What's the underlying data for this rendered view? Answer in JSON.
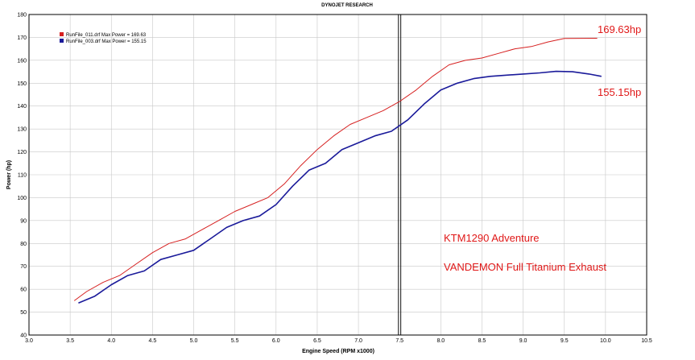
{
  "header": {
    "title": "DYNOJET RESEARCH"
  },
  "colors": {
    "series1": "#d62020",
    "series2": "#1a1a9a",
    "annotation": "#e01818",
    "grid": "#c8c8c8"
  },
  "chart_data": {
    "type": "line",
    "title": "DYNOJET RESEARCH",
    "xlabel": "Engine Speed (RPM x1000)",
    "ylabel": "Power (hp)",
    "xlim": [
      3.0,
      10.5
    ],
    "ylim": [
      40,
      180
    ],
    "x_ticks": [
      "3.0",
      "3.5",
      "4.0",
      "4.5",
      "5.0",
      "5.5",
      "6.0",
      "6.5",
      "7.0",
      "7.5",
      "8.0",
      "8.5",
      "9.0",
      "9.5",
      "10.0",
      "10.5"
    ],
    "y_ticks": [
      "40",
      "50",
      "60",
      "70",
      "80",
      "90",
      "100",
      "110",
      "120",
      "130",
      "140",
      "150",
      "160",
      "170",
      "180"
    ],
    "grid": true,
    "legend_position": "top-left",
    "legend": [
      "RunFile_011.drf Max Power = 169.63",
      "RunFile_003.drf Max Power = 155.15"
    ],
    "series": [
      {
        "name": "RunFile_011.drf Max Power = 169.63",
        "color": "#d62020",
        "x": [
          3.55,
          3.7,
          3.9,
          4.1,
          4.3,
          4.5,
          4.7,
          4.9,
          5.1,
          5.3,
          5.5,
          5.7,
          5.9,
          6.1,
          6.3,
          6.5,
          6.7,
          6.9,
          7.1,
          7.3,
          7.5,
          7.7,
          7.9,
          8.1,
          8.3,
          8.5,
          8.7,
          8.9,
          9.1,
          9.3,
          9.5,
          9.7,
          9.9
        ],
        "y": [
          55,
          59,
          63,
          66,
          71,
          76,
          80,
          82,
          86,
          90,
          94,
          97,
          100,
          106,
          114,
          121,
          127,
          132,
          135,
          138,
          142,
          147,
          153,
          158,
          160,
          161,
          163,
          165,
          166,
          168,
          169.5,
          169.6,
          169.63
        ]
      },
      {
        "name": "RunFile_003.drf Max Power = 155.15",
        "color": "#1a1a9a",
        "x": [
          3.6,
          3.8,
          4.0,
          4.2,
          4.4,
          4.6,
          4.8,
          5.0,
          5.2,
          5.4,
          5.6,
          5.8,
          6.0,
          6.2,
          6.4,
          6.6,
          6.8,
          7.0,
          7.2,
          7.4,
          7.6,
          7.8,
          8.0,
          8.2,
          8.4,
          8.6,
          8.8,
          9.0,
          9.2,
          9.4,
          9.6,
          9.8,
          9.95
        ],
        "y": [
          54,
          57,
          62,
          66,
          68,
          73,
          75,
          77,
          82,
          87,
          90,
          92,
          97,
          105,
          112,
          115,
          121,
          124,
          127,
          129,
          134,
          141,
          147,
          150,
          152,
          153,
          153.5,
          154,
          154.5,
          155.15,
          155,
          154,
          153
        ]
      }
    ],
    "vertical_marker_x": 7.5,
    "annotations": [
      "169.63hp",
      "155.15hp",
      "KTM1290 Adventure",
      "VANDEMON Full Titanium Exhaust"
    ]
  }
}
